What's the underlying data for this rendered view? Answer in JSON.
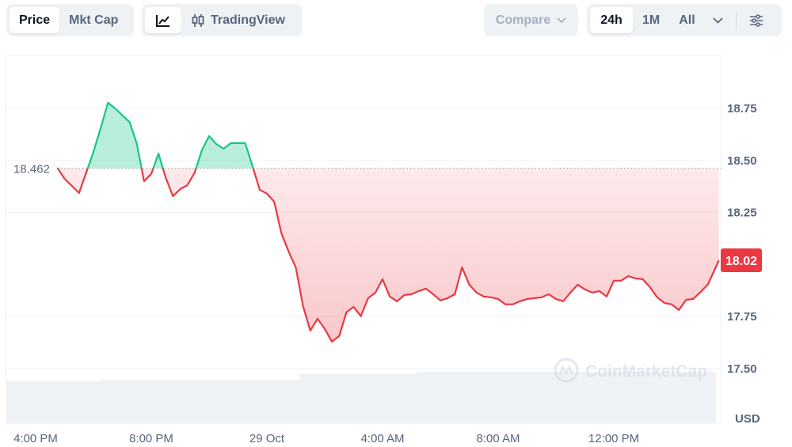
{
  "toolbar": {
    "view_tabs": [
      {
        "label": "Price",
        "active": true
      },
      {
        "label": "Mkt Cap",
        "active": false
      }
    ],
    "chart_type": {
      "line_icon": "line-chart-icon",
      "tradingview_icon": "candlestick-icon",
      "tradingview_label": "TradingView"
    },
    "compare_label": "Compare",
    "ranges": [
      {
        "label": "24h",
        "active": true
      },
      {
        "label": "1M",
        "active": false
      },
      {
        "label": "All",
        "active": false
      }
    ],
    "more_icon": "chevron-down-icon",
    "settings_icon": "sliders-icon"
  },
  "watermark": "CoinMarketCap",
  "colors": {
    "up": "#16c784",
    "down": "#ea3943",
    "grid": "#eff2f5",
    "text": "#58667e"
  },
  "chart_data": {
    "type": "line",
    "title": "",
    "xlabel": "",
    "ylabel": "USD",
    "ylim": [
      17.4,
      19.0
    ],
    "yticks": [
      "18.75",
      "18.50",
      "18.25",
      "17.75",
      "17.50"
    ],
    "xticks": [
      {
        "label": "4:00 PM",
        "time": "16:00"
      },
      {
        "label": "8:00 PM",
        "time": "20:00"
      },
      {
        "label": "29 Oct",
        "time": "00:00"
      },
      {
        "label": "4:00 AM",
        "time": "04:00"
      },
      {
        "label": "8:00 AM",
        "time": "08:00"
      },
      {
        "label": "12:00 PM",
        "time": "12:00"
      }
    ],
    "baseline": {
      "value": 18.462,
      "label": "18.462"
    },
    "current": {
      "value": 18.02,
      "label": "18.02"
    },
    "grid": true,
    "series": [
      {
        "points": [
          [
            "16:45",
            18.465
          ],
          [
            "17:00",
            18.412
          ],
          [
            "17:15",
            18.378
          ],
          [
            "17:30",
            18.343
          ],
          [
            "17:45",
            18.442
          ],
          [
            "18:00",
            18.541
          ],
          [
            "18:15",
            18.655
          ],
          [
            "18:30",
            18.777
          ],
          [
            "18:45",
            18.75
          ],
          [
            "19:00",
            18.716
          ],
          [
            "19:15",
            18.685
          ],
          [
            "19:30",
            18.579
          ],
          [
            "19:45",
            18.4
          ],
          [
            "20:00",
            18.435
          ],
          [
            "20:15",
            18.533
          ],
          [
            "20:30",
            18.416
          ],
          [
            "20:45",
            18.328
          ],
          [
            "21:00",
            18.362
          ],
          [
            "21:15",
            18.381
          ],
          [
            "21:30",
            18.442
          ],
          [
            "21:45",
            18.549
          ],
          [
            "22:00",
            18.617
          ],
          [
            "22:15",
            18.579
          ],
          [
            "22:30",
            18.556
          ],
          [
            "22:45",
            18.583
          ],
          [
            "23:00",
            18.583
          ],
          [
            "23:15",
            18.583
          ],
          [
            "23:30",
            18.473
          ],
          [
            "23:45",
            18.359
          ],
          [
            "00:00",
            18.34
          ],
          [
            "00:15",
            18.302
          ],
          [
            "00:30",
            18.15
          ],
          [
            "00:45",
            18.062
          ],
          [
            "01:00",
            17.986
          ],
          [
            "01:15",
            17.8
          ],
          [
            "01:30",
            17.682
          ],
          [
            "01:45",
            17.739
          ],
          [
            "02:00",
            17.69
          ],
          [
            "02:15",
            17.629
          ],
          [
            "02:30",
            17.656
          ],
          [
            "02:45",
            17.77
          ],
          [
            "03:00",
            17.796
          ],
          [
            "03:15",
            17.751
          ],
          [
            "03:30",
            17.838
          ],
          [
            "03:45",
            17.864
          ],
          [
            "04:00",
            17.929
          ],
          [
            "04:15",
            17.846
          ],
          [
            "04:30",
            17.823
          ],
          [
            "04:45",
            17.853
          ],
          [
            "05:00",
            17.857
          ],
          [
            "05:15",
            17.872
          ],
          [
            "05:30",
            17.884
          ],
          [
            "05:45",
            17.857
          ],
          [
            "06:00",
            17.827
          ],
          [
            "06:15",
            17.838
          ],
          [
            "06:30",
            17.857
          ],
          [
            "06:45",
            17.986
          ],
          [
            "07:00",
            17.903
          ],
          [
            "07:15",
            17.865
          ],
          [
            "07:30",
            17.846
          ],
          [
            "07:45",
            17.842
          ],
          [
            "08:00",
            17.834
          ],
          [
            "08:15",
            17.808
          ],
          [
            "08:30",
            17.808
          ],
          [
            "08:45",
            17.823
          ],
          [
            "09:00",
            17.834
          ],
          [
            "09:15",
            17.838
          ],
          [
            "09:30",
            17.842
          ],
          [
            "09:45",
            17.857
          ],
          [
            "10:00",
            17.834
          ],
          [
            "10:15",
            17.823
          ],
          [
            "10:30",
            17.865
          ],
          [
            "10:45",
            17.903
          ],
          [
            "11:00",
            17.88
          ],
          [
            "11:15",
            17.865
          ],
          [
            "11:30",
            17.872
          ],
          [
            "11:45",
            17.846
          ],
          [
            "12:00",
            17.922
          ],
          [
            "12:15",
            17.922
          ],
          [
            "12:30",
            17.944
          ],
          [
            "12:45",
            17.933
          ],
          [
            "13:00",
            17.929
          ],
          [
            "13:15",
            17.891
          ],
          [
            "13:30",
            17.842
          ],
          [
            "13:45",
            17.815
          ],
          [
            "14:00",
            17.808
          ],
          [
            "14:15",
            17.781
          ],
          [
            "14:30",
            17.83
          ],
          [
            "14:45",
            17.834
          ],
          [
            "15:00",
            17.868
          ],
          [
            "15:15",
            17.903
          ],
          [
            "15:30",
            17.978
          ],
          [
            "15:38",
            18.02
          ]
        ]
      }
    ]
  }
}
